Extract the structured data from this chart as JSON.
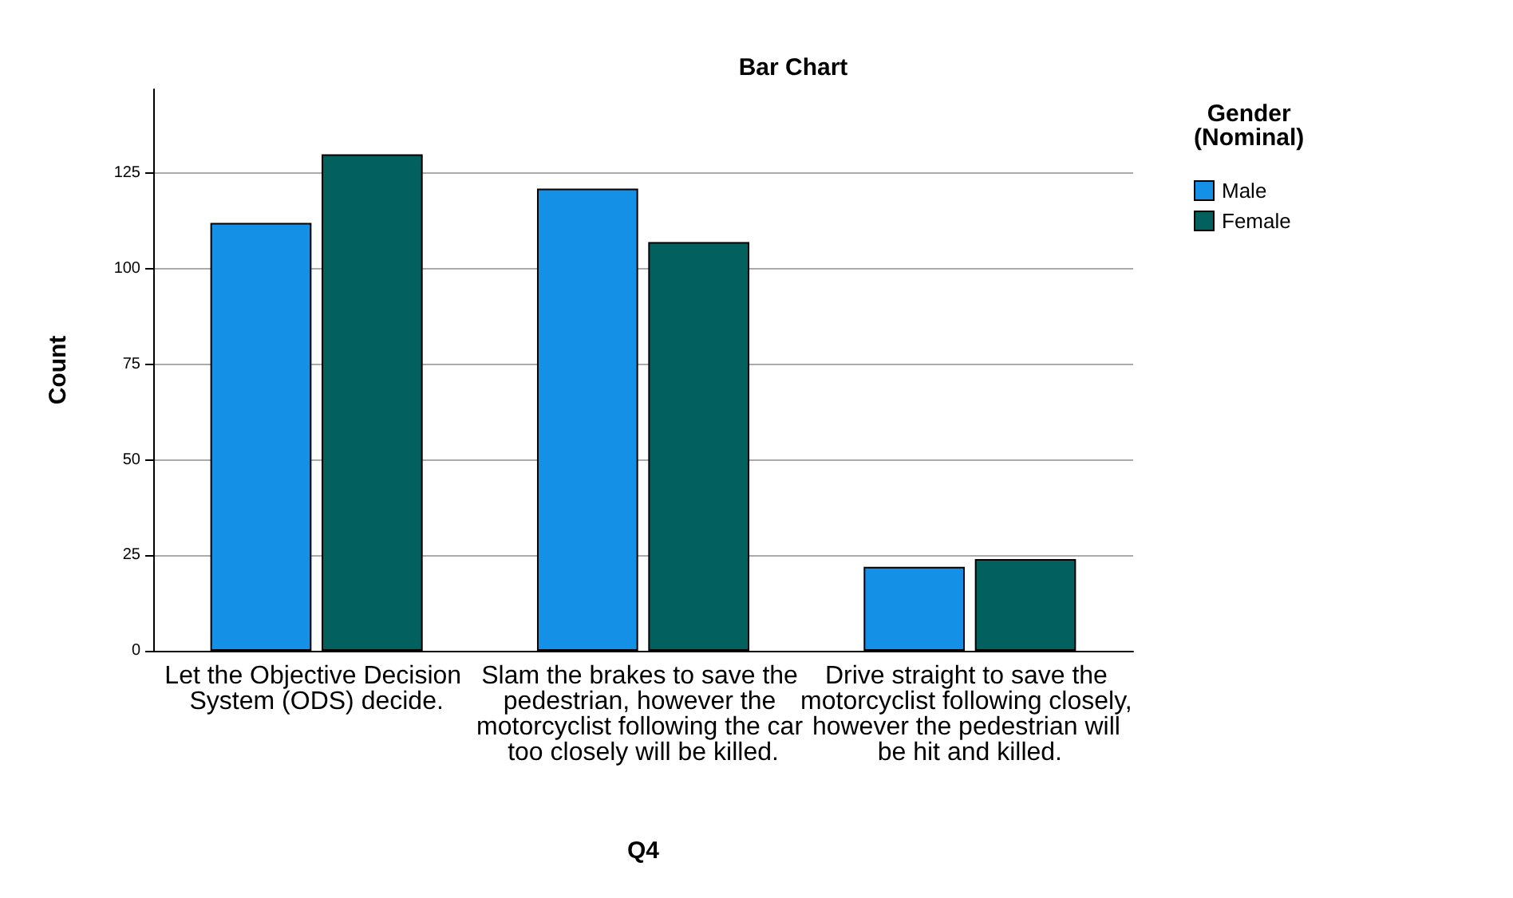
{
  "chart_data": {
    "type": "bar",
    "title": "Bar Chart",
    "xlabel": "Q4",
    "ylabel": "Count",
    "legend_title": "Gender\n(Nominal)",
    "categories": [
      "Let the Objective Decision System (ODS) decide.",
      "Slam the brakes to save the pedestrian, however the motorcyclist following the car too closely will be killed.",
      "Drive straight to save the motorcyclist following closely, however the pedestrian will be hit and killed."
    ],
    "series": [
      {
        "name": "Male",
        "color": "#1490e6",
        "values": [
          112,
          121,
          22
        ]
      },
      {
        "name": "Female",
        "color": "#02605e",
        "values": [
          130,
          107,
          24
        ]
      }
    ],
    "ylim": [
      0,
      147
    ],
    "yticks": [
      0,
      25,
      50,
      75,
      100,
      125
    ],
    "grid": "y",
    "legend": "top right"
  }
}
